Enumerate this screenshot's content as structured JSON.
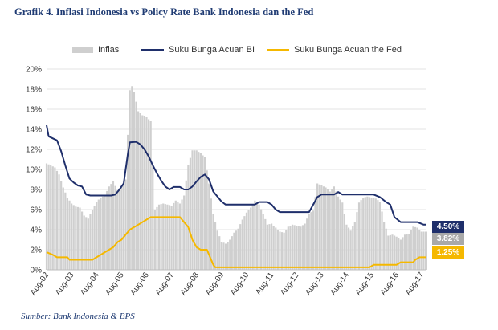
{
  "chart_data": {
    "type": "bar+line",
    "title": "Grafik 4. Inflasi Indonesia vs Policy Rate Bank Indonesia dan the Fed",
    "source": "Sumber: Bank Indonesia & BPS",
    "ylim": [
      0,
      20
    ],
    "yticks": [
      "0%",
      "2%",
      "4%",
      "6%",
      "8%",
      "10%",
      "12%",
      "14%",
      "16%",
      "18%",
      "20%"
    ],
    "xticks": [
      "Aug-02",
      "Aug-03",
      "Aug-04",
      "Aug-05",
      "Aug-06",
      "Aug-07",
      "Aug-08",
      "Aug-09",
      "Aug-10",
      "Aug-11",
      "Aug-12",
      "Aug-13",
      "Aug-14",
      "Aug-15",
      "Aug-16",
      "Aug-17"
    ],
    "grid": true,
    "legend_position": "top",
    "legend": [
      {
        "name": "Inflasi",
        "kind": "bar",
        "color": "#cfcfcf"
      },
      {
        "name": "Suku Bunga Acuan BI",
        "kind": "line",
        "color": "#1f2f6b"
      },
      {
        "name": "Suku Bunga Acuan the Fed",
        "kind": "line",
        "color": "#f5b800"
      }
    ],
    "inflation_points": [
      [
        0,
        10.6
      ],
      [
        2,
        10.4
      ],
      [
        4,
        10.2
      ],
      [
        6,
        9.5
      ],
      [
        8,
        8.2
      ],
      [
        10,
        7.2
      ],
      [
        12,
        6.6
      ],
      [
        14,
        6.3
      ],
      [
        16,
        6.2
      ],
      [
        18,
        5.4
      ],
      [
        20,
        5.1
      ],
      [
        22,
        6.0
      ],
      [
        24,
        6.8
      ],
      [
        26,
        7.2
      ],
      [
        28,
        7.4
      ],
      [
        30,
        8.3
      ],
      [
        32,
        8.8
      ],
      [
        34,
        7.9
      ],
      [
        36,
        8.3
      ],
      [
        38,
        9.0
      ],
      [
        40,
        17.9
      ],
      [
        41,
        18.3
      ],
      [
        42,
        17.7
      ],
      [
        44,
        15.8
      ],
      [
        46,
        15.4
      ],
      [
        48,
        15.2
      ],
      [
        50,
        14.8
      ],
      [
        52,
        6.0
      ],
      [
        54,
        6.5
      ],
      [
        56,
        6.6
      ],
      [
        58,
        6.5
      ],
      [
        60,
        6.4
      ],
      [
        62,
        6.9
      ],
      [
        64,
        6.6
      ],
      [
        66,
        7.4
      ],
      [
        68,
        10.4
      ],
      [
        70,
        11.9
      ],
      [
        72,
        11.9
      ],
      [
        74,
        11.6
      ],
      [
        76,
        11.2
      ],
      [
        78,
        8.6
      ],
      [
        80,
        5.6
      ],
      [
        82,
        3.9
      ],
      [
        84,
        2.8
      ],
      [
        86,
        2.6
      ],
      [
        88,
        3.0
      ],
      [
        90,
        3.7
      ],
      [
        92,
        4.1
      ],
      [
        94,
        5.0
      ],
      [
        96,
        5.7
      ],
      [
        98,
        6.2
      ],
      [
        100,
        6.9
      ],
      [
        102,
        6.5
      ],
      [
        104,
        5.6
      ],
      [
        106,
        4.5
      ],
      [
        108,
        4.6
      ],
      [
        110,
        4.2
      ],
      [
        112,
        3.8
      ],
      [
        114,
        3.7
      ],
      [
        116,
        4.3
      ],
      [
        118,
        4.5
      ],
      [
        120,
        4.4
      ],
      [
        122,
        4.3
      ],
      [
        124,
        4.6
      ],
      [
        126,
        5.6
      ],
      [
        128,
        5.9
      ],
      [
        130,
        8.6
      ],
      [
        132,
        8.4
      ],
      [
        134,
        8.2
      ],
      [
        136,
        7.8
      ],
      [
        138,
        8.3
      ],
      [
        140,
        7.3
      ],
      [
        142,
        6.7
      ],
      [
        144,
        4.5
      ],
      [
        146,
        3.9
      ],
      [
        148,
        4.8
      ],
      [
        150,
        6.7
      ],
      [
        152,
        7.2
      ],
      [
        154,
        7.3
      ],
      [
        156,
        7.2
      ],
      [
        158,
        7.1
      ],
      [
        160,
        6.8
      ],
      [
        162,
        4.8
      ],
      [
        164,
        3.4
      ],
      [
        166,
        3.5
      ],
      [
        168,
        3.3
      ],
      [
        170,
        3.0
      ],
      [
        172,
        3.5
      ],
      [
        174,
        3.6
      ],
      [
        176,
        4.3
      ],
      [
        178,
        4.2
      ],
      [
        180,
        3.8
      ],
      [
        182,
        3.8
      ]
    ],
    "bi_rate_points": [
      [
        0,
        14.4
      ],
      [
        1,
        13.3
      ],
      [
        3,
        13.1
      ],
      [
        5,
        12.9
      ],
      [
        7,
        11.8
      ],
      [
        9,
        10.4
      ],
      [
        11,
        9.1
      ],
      [
        13,
        8.7
      ],
      [
        15,
        8.4
      ],
      [
        17,
        8.3
      ],
      [
        19,
        7.5
      ],
      [
        21,
        7.4
      ],
      [
        24,
        7.4
      ],
      [
        26,
        7.4
      ],
      [
        28,
        7.4
      ],
      [
        31,
        7.4
      ],
      [
        33,
        7.5
      ],
      [
        35,
        8.0
      ],
      [
        37,
        8.6
      ],
      [
        39,
        11.5
      ],
      [
        40,
        12.7
      ],
      [
        43,
        12.75
      ],
      [
        45,
        12.5
      ],
      [
        47,
        12.0
      ],
      [
        49,
        11.3
      ],
      [
        51,
        10.4
      ],
      [
        53,
        9.6
      ],
      [
        55,
        8.9
      ],
      [
        57,
        8.3
      ],
      [
        59,
        8.0
      ],
      [
        61,
        8.25
      ],
      [
        64,
        8.25
      ],
      [
        66,
        8.0
      ],
      [
        68,
        8.0
      ],
      [
        70,
        8.3
      ],
      [
        72,
        8.8
      ],
      [
        74,
        9.25
      ],
      [
        76,
        9.5
      ],
      [
        78,
        9.0
      ],
      [
        80,
        7.8
      ],
      [
        82,
        7.3
      ],
      [
        84,
        6.8
      ],
      [
        86,
        6.5
      ],
      [
        88,
        6.5
      ],
      [
        100,
        6.5
      ],
      [
        102,
        6.75
      ],
      [
        106,
        6.75
      ],
      [
        108,
        6.5
      ],
      [
        110,
        6.0
      ],
      [
        112,
        5.75
      ],
      [
        124,
        5.75
      ],
      [
        126,
        5.75
      ],
      [
        128,
        6.5
      ],
      [
        130,
        7.25
      ],
      [
        132,
        7.5
      ],
      [
        135,
        7.5
      ],
      [
        138,
        7.5
      ],
      [
        140,
        7.75
      ],
      [
        142,
        7.5
      ],
      [
        146,
        7.5
      ],
      [
        155,
        7.5
      ],
      [
        157,
        7.5
      ],
      [
        160,
        7.25
      ],
      [
        163,
        6.75
      ],
      [
        165,
        6.5
      ],
      [
        167,
        5.25
      ],
      [
        170,
        4.75
      ],
      [
        176,
        4.75
      ],
      [
        178,
        4.75
      ],
      [
        181,
        4.5
      ],
      [
        182,
        4.5
      ]
    ],
    "fed_rate_points": [
      [
        0,
        1.75
      ],
      [
        3,
        1.5
      ],
      [
        5,
        1.25
      ],
      [
        10,
        1.25
      ],
      [
        11,
        1.0
      ],
      [
        16,
        1.0
      ],
      [
        22,
        1.0
      ],
      [
        24,
        1.25
      ],
      [
        26,
        1.5
      ],
      [
        28,
        1.75
      ],
      [
        30,
        2.0
      ],
      [
        32,
        2.25
      ],
      [
        34,
        2.75
      ],
      [
        36,
        3.0
      ],
      [
        38,
        3.5
      ],
      [
        40,
        4.0
      ],
      [
        44,
        4.5
      ],
      [
        48,
        5.0
      ],
      [
        50,
        5.25
      ],
      [
        58,
        5.25
      ],
      [
        64,
        5.25
      ],
      [
        66,
        4.75
      ],
      [
        68,
        4.25
      ],
      [
        70,
        3.0
      ],
      [
        72,
        2.25
      ],
      [
        74,
        2.0
      ],
      [
        77,
        2.0
      ],
      [
        78,
        1.5
      ],
      [
        79,
        1.0
      ],
      [
        80,
        0.5
      ],
      [
        81,
        0.25
      ],
      [
        108,
        0.25
      ],
      [
        120,
        0.25
      ],
      [
        155,
        0.25
      ],
      [
        157,
        0.5
      ],
      [
        168,
        0.5
      ],
      [
        170,
        0.75
      ],
      [
        176,
        0.75
      ],
      [
        177,
        1.0
      ],
      [
        179,
        1.25
      ],
      [
        182,
        1.25
      ]
    ],
    "end_labels": [
      {
        "text": "4.50%",
        "color": "#1f2f6b",
        "value": 4.5
      },
      {
        "text": "3.82%",
        "color": "#a9a9a9",
        "value": 3.82
      },
      {
        "text": "1.25%",
        "color": "#f5b800",
        "value": 1.25
      }
    ]
  }
}
